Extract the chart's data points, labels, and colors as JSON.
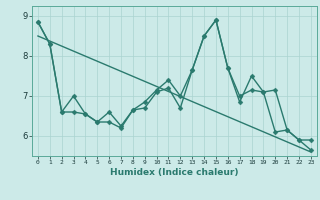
{
  "xlabel": "Humidex (Indice chaleur)",
  "bg_color": "#cceae8",
  "grid_color": "#aad4d0",
  "line_color": "#2a7a6e",
  "xlim": [
    -0.5,
    23.5
  ],
  "ylim": [
    5.5,
    9.25
  ],
  "yticks": [
    6,
    7,
    8,
    9
  ],
  "xticks": [
    0,
    1,
    2,
    3,
    4,
    5,
    6,
    7,
    8,
    9,
    10,
    11,
    12,
    13,
    14,
    15,
    16,
    17,
    18,
    19,
    20,
    21,
    22,
    23
  ],
  "series1_x": [
    0,
    1,
    2,
    3,
    4,
    5,
    6,
    7,
    8,
    9,
    10,
    11,
    12,
    13,
    14,
    15,
    16,
    17,
    18,
    19,
    20,
    21,
    22,
    23
  ],
  "series1_y": [
    8.85,
    8.3,
    6.6,
    7.0,
    6.55,
    6.35,
    6.6,
    6.25,
    6.65,
    6.85,
    7.15,
    7.4,
    7.0,
    7.65,
    8.5,
    8.9,
    7.7,
    6.85,
    7.5,
    7.1,
    7.15,
    6.15,
    5.9,
    5.65
  ],
  "series2_x": [
    0,
    1,
    2,
    3,
    4,
    5,
    6,
    7,
    8,
    9,
    10,
    11,
    12,
    13,
    14,
    15,
    16,
    17,
    18,
    19,
    20,
    21,
    22,
    23
  ],
  "series2_y": [
    8.85,
    8.3,
    6.6,
    6.6,
    6.55,
    6.35,
    6.35,
    6.2,
    6.65,
    6.7,
    7.1,
    7.2,
    6.7,
    7.65,
    8.5,
    8.9,
    7.7,
    7.0,
    7.15,
    7.1,
    6.1,
    6.15,
    5.9,
    5.9
  ],
  "trend_x": [
    0,
    23
  ],
  "trend_y": [
    8.5,
    5.6
  ],
  "marker_size": 2.5,
  "line_width": 1.0
}
